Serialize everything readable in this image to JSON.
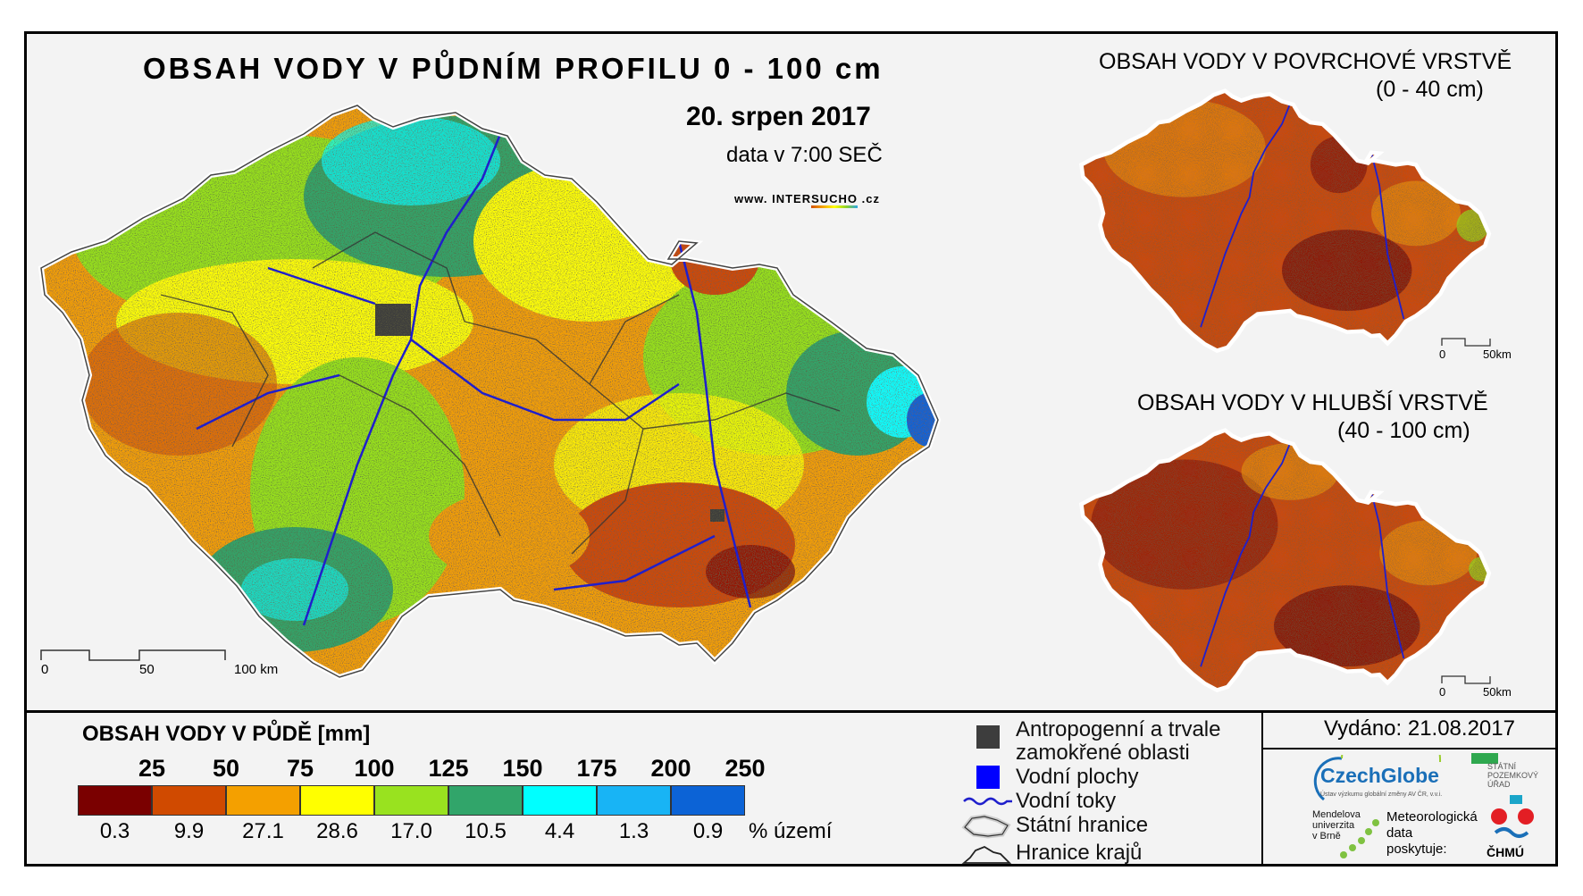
{
  "main_map": {
    "title": "OBSAH VODY V PŮDNÍM PROFILU 0 - 100 cm",
    "date": "20. srpen 2017",
    "time": "data v 7:00 SEČ",
    "url_prefix": "www. INTER",
    "url_brand": "SUCHO",
    "url_suffix": " .cz",
    "scale": {
      "labels": [
        "0",
        "50",
        "100 km"
      ]
    }
  },
  "inset_top": {
    "title_line1": "OBSAH VODY V POVRCHOVÉ VRSTVĚ",
    "title_line2": "(0 - 40 cm)",
    "scale": {
      "labels": [
        "0",
        "50km"
      ]
    }
  },
  "inset_bottom": {
    "title_line1": "OBSAH VODY V HLUBŠÍ VRSTVĚ",
    "title_line2": "(40 - 100 cm)",
    "scale": {
      "labels": [
        "0",
        "50km"
      ]
    }
  },
  "legend": {
    "title": "OBSAH VODY V PŮDĚ [mm]",
    "thresholds": [
      "25",
      "50",
      "75",
      "100",
      "125",
      "150",
      "175",
      "200",
      "250"
    ],
    "classes": [
      {
        "color": "#7a0000",
        "pct": "0.3"
      },
      {
        "color": "#d04a00",
        "pct": "9.9"
      },
      {
        "color": "#f4a000",
        "pct": "27.1"
      },
      {
        "color": "#ffff00",
        "pct": "28.6"
      },
      {
        "color": "#99e21f",
        "pct": "17.0"
      },
      {
        "color": "#31a56a",
        "pct": "10.5"
      },
      {
        "color": "#00ffff",
        "pct": "4.4"
      },
      {
        "color": "#18b4f5",
        "pct": "1.3"
      },
      {
        "color": "#0c63d6",
        "pct": "0.9"
      }
    ],
    "pct_unit": "% území"
  },
  "symbols": {
    "anthropogenic_line1": "Antropogenní a trvale",
    "anthropogenic_line2": "zamokřené oblasti",
    "water_bodies": "Vodní plochy",
    "rivers": "Vodní toky",
    "state_border": "Státní hranice",
    "region_border": "Hranice krajů",
    "anthropogenic_color": "#3d3d3d",
    "water_color": "#0000ff",
    "river_color": "#1f1fcc"
  },
  "footer": {
    "issued": "Vydáno: 21.08.2017",
    "czechglobe": "CzechGlobe",
    "czechglobe_sub": "Ústav výzkumu globální změny AV ČR, v.v.i.",
    "spu_line1": "STÁTNÍ",
    "spu_line2": "POZEMKOVÝ",
    "spu_line3": "ÚŘAD",
    "mendel_line1": "Mendelova",
    "mendel_line2": "univerzita",
    "mendel_line3": "v Brně",
    "meteo_line1": "Meteorologická",
    "meteo_line2": "data",
    "meteo_line3": "poskytuje:",
    "chmu": "ČHMÚ"
  }
}
